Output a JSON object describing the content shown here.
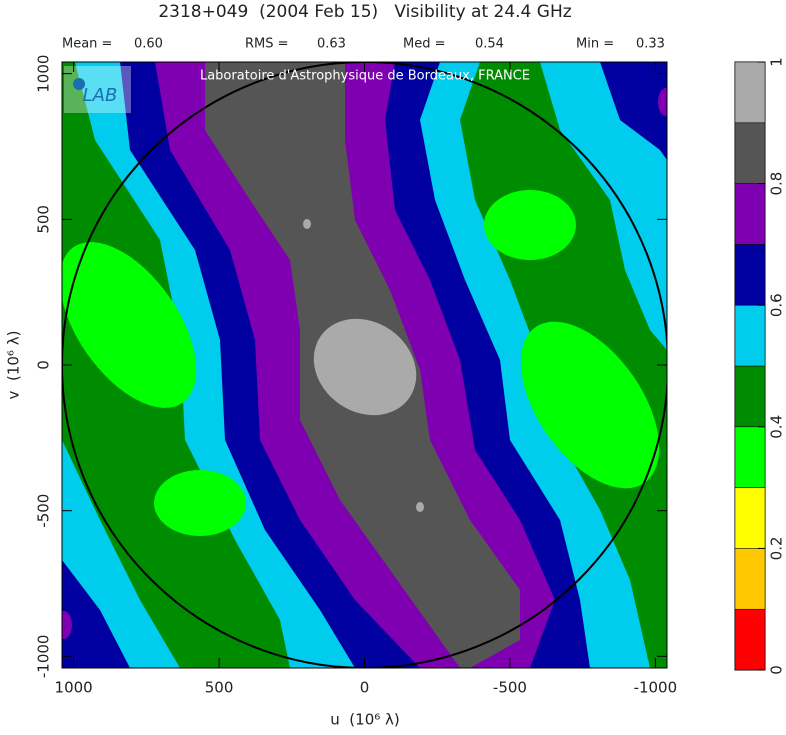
{
  "chart_data": {
    "type": "contour",
    "title": "2318+049  (2004 Feb 15)   Visibility at 24.4 GHz",
    "stats": [
      {
        "name": "Mean =",
        "value": "0.60"
      },
      {
        "name": "RMS =",
        "value": "0.63"
      },
      {
        "name": "Med =",
        "value": "0.54"
      },
      {
        "name": "Min =",
        "value": "0.33"
      }
    ],
    "watermark": "Laboratoire d'Astrophysique de Bordeaux, FRANCE",
    "logo": "LAB",
    "xlabel": "u  (10⁶ λ)",
    "ylabel": "v  (10⁶ λ)",
    "xlim": [
      1040,
      -1040
    ],
    "ylim": [
      -1040,
      1040
    ],
    "xticks": [
      1000,
      500,
      0,
      -500,
      -1000
    ],
    "yticks": [
      -1000,
      -500,
      0,
      500,
      1000
    ],
    "levels": [
      0,
      0.1,
      0.2,
      0.3,
      0.4,
      0.5,
      0.6,
      0.7,
      0.8,
      0.9,
      1
    ],
    "colors": [
      "#ff0000",
      "#ffc800",
      "#ffff00",
      "#00ff00",
      "#008c00",
      "#00ccee",
      "#0000a0",
      "#7f00b0",
      "#555555",
      "#aaaaaa"
    ],
    "colorbar_ticks": [
      0,
      0.2,
      0.4,
      0.6,
      0.8,
      1
    ]
  }
}
